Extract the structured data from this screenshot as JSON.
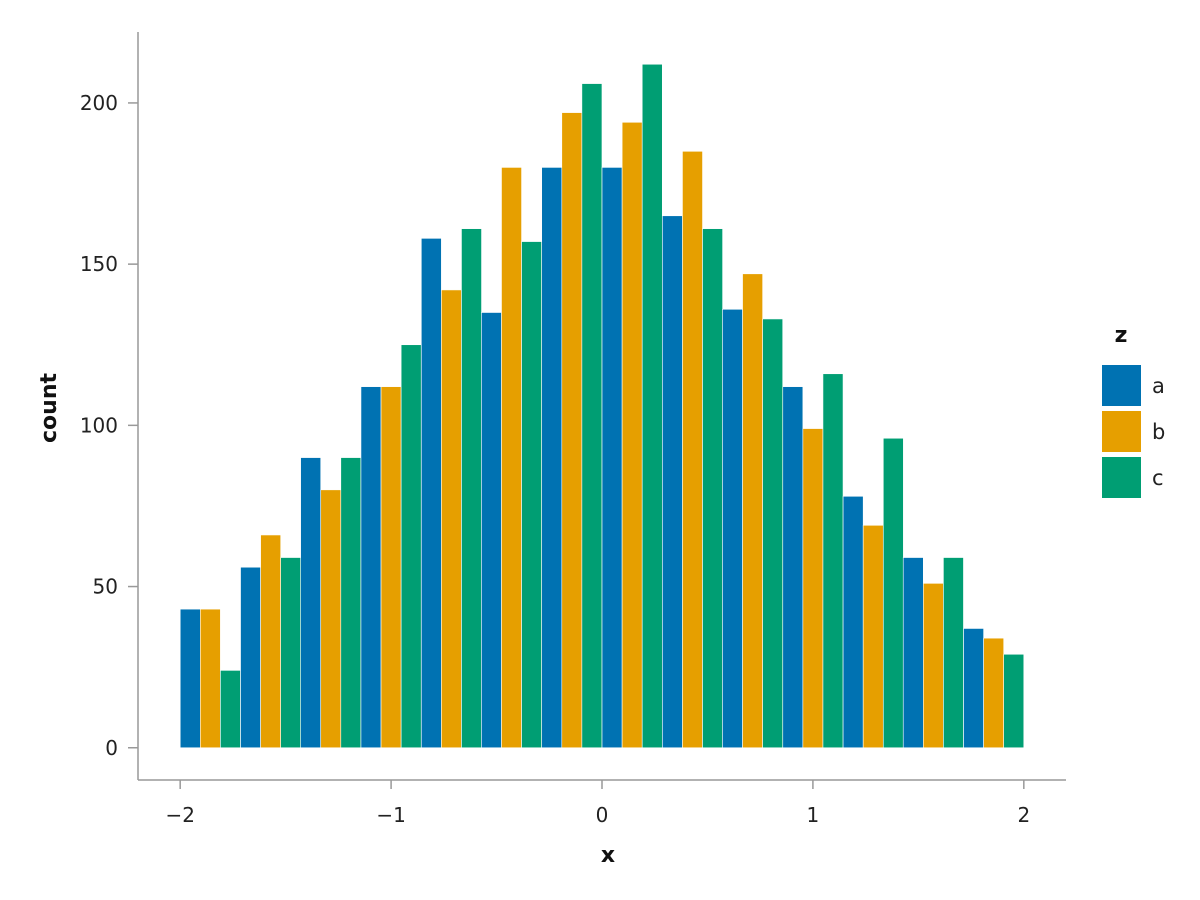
{
  "chart_data": {
    "type": "bar",
    "title": "",
    "xlabel": "x",
    "ylabel": "count",
    "xlim": [
      -2.2,
      2.2
    ],
    "ylim": [
      -10,
      222
    ],
    "x_ticks": [
      -2,
      -1,
      0,
      1,
      2
    ],
    "x_tick_labels": [
      "−2",
      "−1",
      "0",
      "1",
      "2"
    ],
    "y_ticks": [
      0,
      50,
      100,
      150,
      200
    ],
    "y_tick_labels": [
      "0",
      "50",
      "100",
      "150",
      "200"
    ],
    "grid": false,
    "bin_width": 0.2857,
    "legend": {
      "title": "z",
      "placement": "right"
    },
    "x": [
      -1.857,
      -1.571,
      -1.286,
      -1.0,
      -0.714,
      -0.429,
      -0.143,
      0.143,
      0.429,
      0.714,
      1.0,
      1.286,
      1.571,
      1.857
    ],
    "series": [
      {
        "name": "a",
        "color": "#0072b2",
        "values": [
          43,
          56,
          90,
          112,
          158,
          135,
          180,
          180,
          165,
          136,
          112,
          78,
          59,
          37
        ]
      },
      {
        "name": "b",
        "color": "#e69f00",
        "values": [
          43,
          66,
          80,
          112,
          142,
          180,
          197,
          194,
          185,
          147,
          99,
          69,
          51,
          34
        ]
      },
      {
        "name": "c",
        "color": "#009e73",
        "values": [
          24,
          59,
          90,
          125,
          161,
          157,
          206,
          212,
          161,
          133,
          116,
          96,
          59,
          29
        ]
      }
    ]
  }
}
